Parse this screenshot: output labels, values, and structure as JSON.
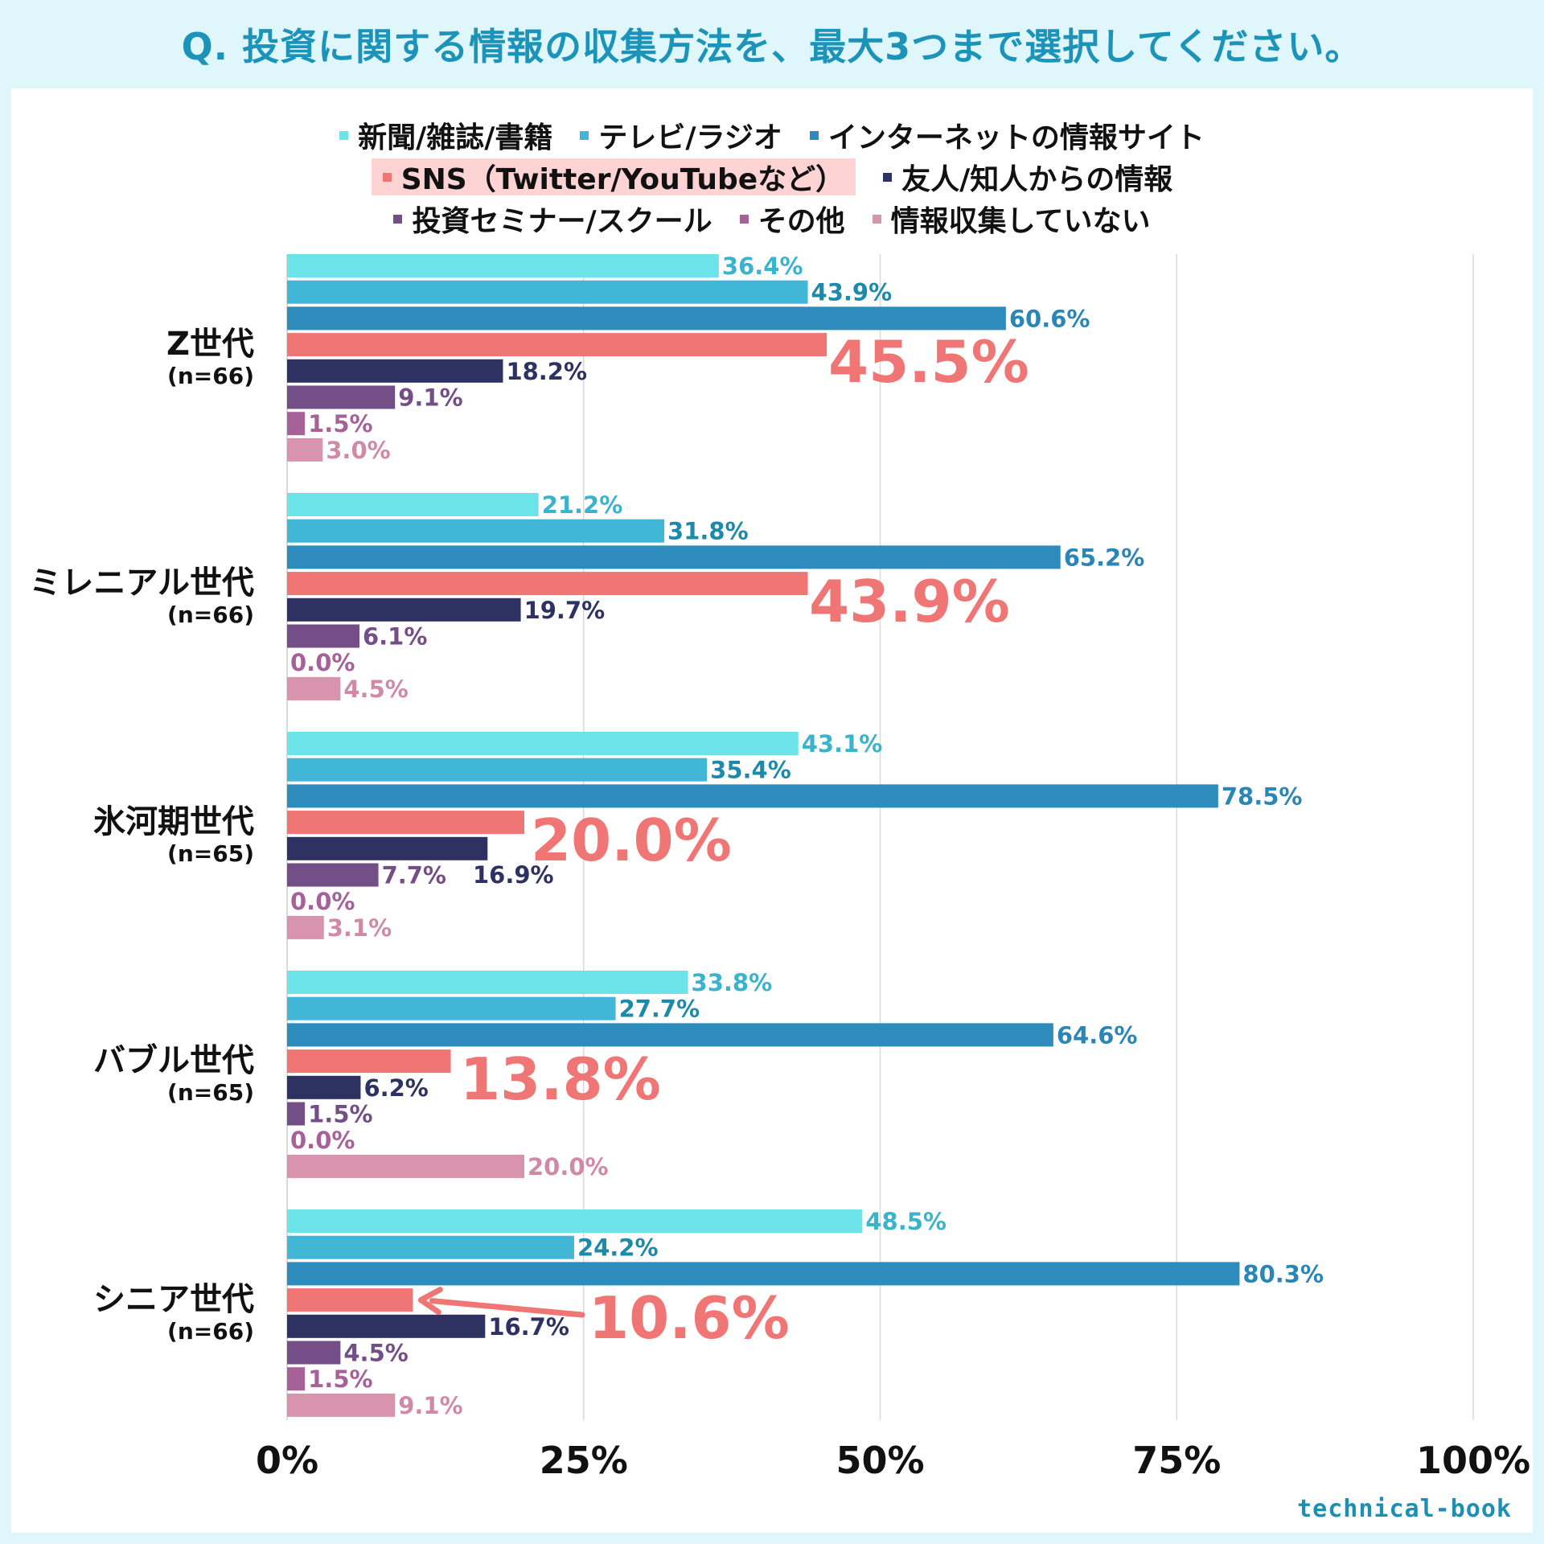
{
  "title": "Q. 投資に関する情報の収集方法を、最大3つまで選択してください。",
  "watermark": "technical-book",
  "chart_data": {
    "type": "bar",
    "orientation": "horizontal",
    "xlim": [
      0,
      100
    ],
    "xticks": [
      "0%",
      "25%",
      "50%",
      "75%",
      "100%"
    ],
    "grid": true,
    "legend_position": "top",
    "groups": [
      {
        "name": "Z世代",
        "n": "(n=66)"
      },
      {
        "name": "ミレニアル世代",
        "n": "(n=66)"
      },
      {
        "name": "氷河期世代",
        "n": "(n=65)"
      },
      {
        "name": "バブル世代",
        "n": "(n=65)"
      },
      {
        "name": "シニア世代",
        "n": "(n=66)"
      }
    ],
    "series": [
      {
        "name": "新聞/雑誌/書籍",
        "color": "#6ce3e8",
        "label_color": "#3ab3cc",
        "values": [
          36.4,
          21.2,
          43.1,
          33.8,
          48.5
        ],
        "labels": [
          "36.4%",
          "21.2%",
          "43.1%",
          "33.8%",
          "48.5%"
        ]
      },
      {
        "name": "テレビ/ラジオ",
        "color": "#42b6d6",
        "label_color": "#1e8aab",
        "values": [
          43.9,
          31.8,
          35.4,
          27.7,
          24.2
        ],
        "labels": [
          "43.9%",
          "31.8%",
          "35.4%",
          "27.7%",
          "24.2%"
        ]
      },
      {
        "name": "インターネットの情報サイト",
        "color": "#2d8cbc",
        "label_color": "#2a86b6",
        "values": [
          60.6,
          65.2,
          78.5,
          64.6,
          80.3
        ],
        "labels": [
          "60.6%",
          "65.2%",
          "78.5%",
          "64.6%",
          "80.3%"
        ]
      },
      {
        "name": "SNS（Twitter/YouTubeなど）",
        "color": "#f07575",
        "label_color": "#f07575",
        "values": [
          45.5,
          43.9,
          20.0,
          13.8,
          10.6
        ],
        "labels": [
          "45.5%",
          "43.9%",
          "20.0%",
          "13.8%",
          "10.6%"
        ],
        "highlight": true
      },
      {
        "name": "友人/知人からの情報",
        "color": "#2e3262",
        "label_color": "#2e3262",
        "values": [
          18.2,
          19.7,
          16.9,
          6.2,
          16.7
        ],
        "labels": [
          "18.2%",
          "19.7%",
          "16.9%",
          "6.2%",
          "16.7%"
        ]
      },
      {
        "name": "投資セミナー/スクール",
        "color": "#744e86",
        "label_color": "#744e86",
        "values": [
          9.1,
          6.1,
          7.7,
          1.5,
          4.5
        ],
        "labels": [
          "9.1%",
          "6.1%",
          "7.7%",
          "1.5%",
          "4.5%"
        ]
      },
      {
        "name": "その他",
        "color": "#a66298",
        "label_color": "#a66298",
        "values": [
          1.5,
          0.0,
          0.0,
          0.0,
          1.5
        ],
        "labels": [
          "1.5%",
          "0.0%",
          "0.0%",
          "0.0%",
          "1.5%"
        ]
      },
      {
        "name": "情報収集していない",
        "color": "#d994ad",
        "label_color": "#d08aa6",
        "values": [
          3.0,
          4.5,
          3.1,
          20.0,
          9.1
        ],
        "labels": [
          "3.0%",
          "4.5%",
          "3.1%",
          "20.0%",
          "9.1%"
        ]
      }
    ]
  }
}
